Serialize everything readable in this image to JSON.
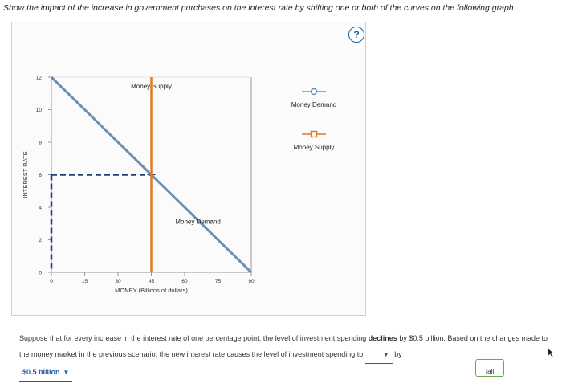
{
  "instruction": "Show the impact of the increase in government purchases on the interest rate by shifting one or both of the curves on the following graph.",
  "help_label": "?",
  "legend": {
    "items": [
      {
        "label": "Money Demand",
        "marker": "circle"
      },
      {
        "label": "Money Supply",
        "marker": "square"
      }
    ]
  },
  "chart_data": {
    "type": "line",
    "xlabel": "MONEY (Billions of dollars)",
    "ylabel": "INTEREST RATE",
    "xlim": [
      0,
      90
    ],
    "ylim": [
      0,
      12
    ],
    "x_ticks": [
      0,
      15,
      30,
      45,
      60,
      75,
      90
    ],
    "y_ticks": [
      0,
      2,
      4,
      6,
      8,
      10,
      12
    ],
    "series": [
      {
        "name": "Money Demand",
        "color": "#6b8fb5",
        "points": [
          [
            0,
            12
          ],
          [
            90,
            0
          ]
        ]
      },
      {
        "name": "Money Supply",
        "color": "#e07b1f",
        "points": [
          [
            45,
            0
          ],
          [
            45,
            12
          ]
        ]
      }
    ],
    "equilibrium": {
      "x": 45,
      "y": 6
    },
    "guides": {
      "color": "#1f3f7a",
      "style": "dashed"
    }
  },
  "question": {
    "text_before": "Suppose that for every increase in the interest rate of one percentage point, the level of investment spending",
    "bold_word": "declines",
    "text_middle": "by $0.5 billion. Based on the changes made to the money market in the previous scenario, the new interest rate causes the level of investment spending to",
    "dropdown1_value": "",
    "text_by": "by",
    "dropdown2_value": "$0.5 billion",
    "text_end": "."
  },
  "dropdown_option": "fall"
}
